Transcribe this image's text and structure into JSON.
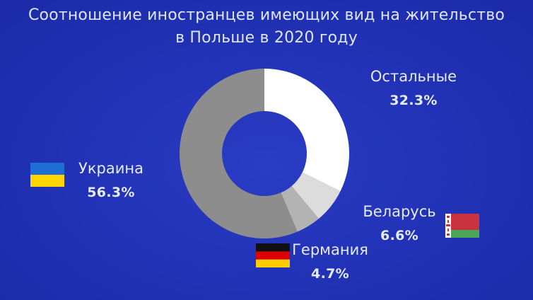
{
  "title": {
    "line1": "Соотношение иностранцев имеющих вид на жительство",
    "line2": "в Польше в 2020 году"
  },
  "colors": {
    "background": "#2233b8",
    "text": "#e6ecff",
    "ukraine_blue": "#1f6ed6",
    "ukraine_yellow": "#ffd400",
    "germany_black": "#111111",
    "germany_red": "#dd0000",
    "germany_gold": "#ffce00",
    "belarus_red": "#c8313e",
    "belarus_green": "#4aa657"
  },
  "chart_data": {
    "type": "pie",
    "donut": true,
    "title": "Соотношение иностранцев имеющих вид на жительство в Польше в 2020 году",
    "categories": [
      "Остальные",
      "Беларусь",
      "Германия",
      "Украина"
    ],
    "values": [
      32.3,
      6.6,
      4.7,
      56.3
    ],
    "labels": [
      "32.3%",
      "6.6%",
      "4.7%",
      "56.3%"
    ],
    "colors": [
      "#ffffff",
      "#dcdcdc",
      "#b3b3b3",
      "#8d8d8d"
    ],
    "flags": [
      "",
      "belarus-flag-icon",
      "germany-flag-icon",
      "ukraine-flag-icon"
    ]
  }
}
